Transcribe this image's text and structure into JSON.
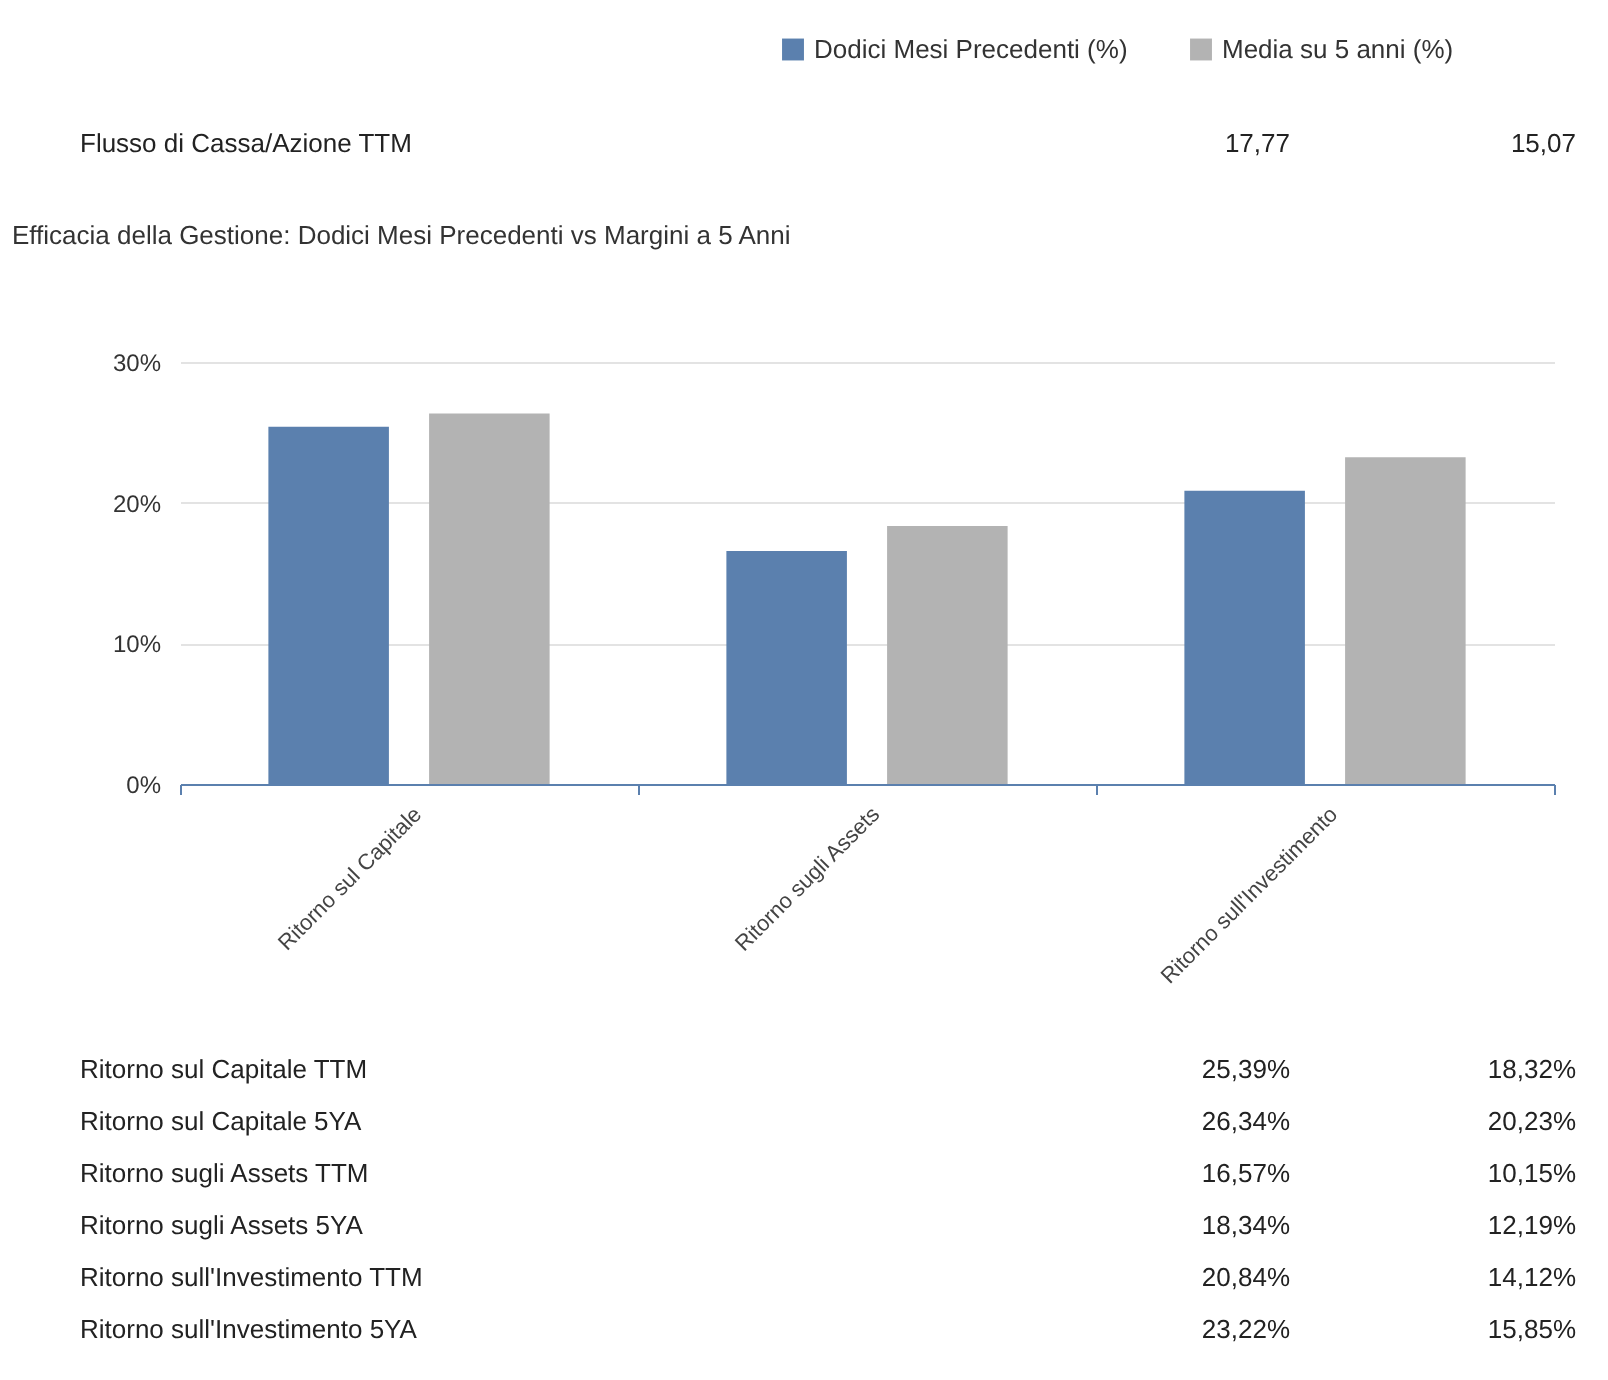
{
  "chart_data": {
    "type": "bar",
    "title": "Efficacia della Gestione: Dodici Mesi Precedenti vs Margini a 5 Anni",
    "categories": [
      "Ritorno sul Capitale",
      "Ritorno sugli Assets",
      "Ritorno sull'Investimento"
    ],
    "series": [
      {
        "name": "Dodici Mesi Precedenti (%)",
        "color": "#5b80ae",
        "values": [
          25.39,
          16.57,
          20.84
        ]
      },
      {
        "name": "Media su 5 anni (%)",
        "color": "#b3b3b3",
        "values": [
          26.34,
          18.34,
          23.22
        ]
      }
    ],
    "ylim": [
      0,
      30
    ],
    "yticks": [
      {
        "value": 0,
        "label": "0%"
      },
      {
        "value": 10,
        "label": "10%"
      },
      {
        "value": 20,
        "label": "20%"
      },
      {
        "value": 30,
        "label": "30%"
      }
    ],
    "grid": "y",
    "legend": "top right",
    "annotations": [
      "Flusso di Cassa/Azione TTM",
      "17,77",
      "15,07",
      "Ritorno sul Capitale TTM",
      "25,39%",
      "18,32%",
      "Ritorno sul Capitale 5YA",
      "26,34%",
      "20,23%",
      "Ritorno sugli Assets TTM",
      "16,57%",
      "10,15%",
      "Ritorno sugli Assets 5YA",
      "18,34%",
      "12,19%",
      "Ritorno sull'Investimento TTM",
      "20,84%",
      "14,12%",
      "Ritorno sull'Investimento 5YA",
      "23,22%",
      "15,85%"
    ]
  }
}
